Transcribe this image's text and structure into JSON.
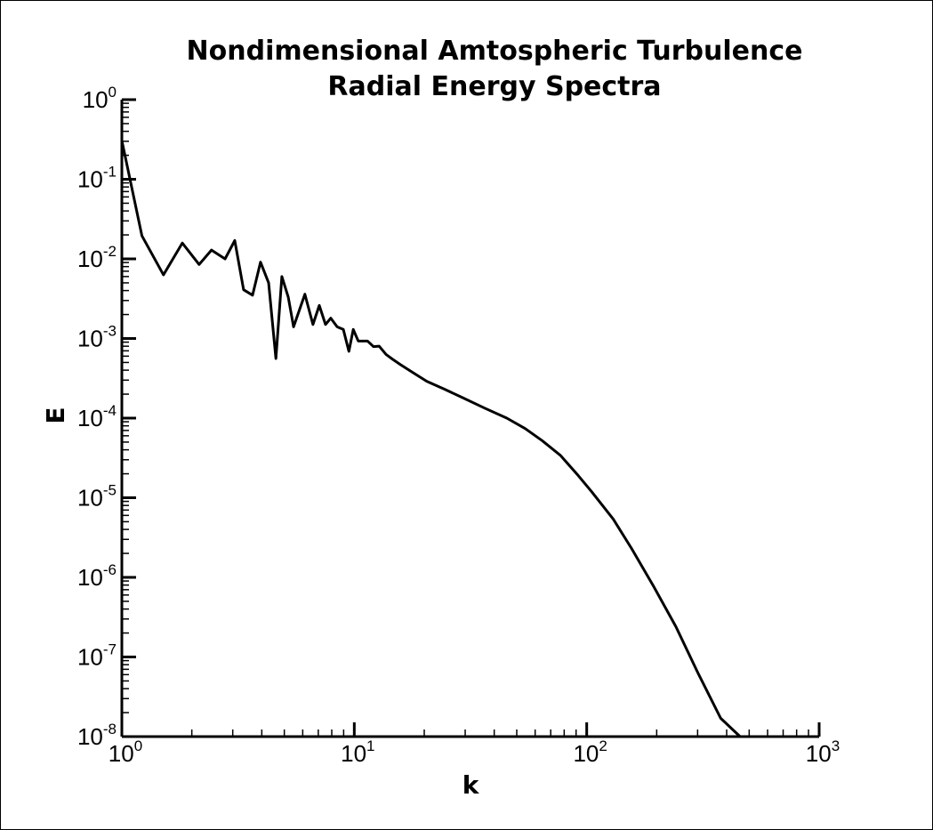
{
  "chart_data": {
    "type": "line",
    "title": [
      "Nondimensional Amtospheric Turbulence",
      "Radial Energy Spectra"
    ],
    "xlabel": "k",
    "ylabel": "E",
    "xscale": "log",
    "yscale": "log",
    "xlim": [
      1,
      1000
    ],
    "ylim": [
      1e-08,
      1
    ],
    "xticks": [
      {
        "value": 1,
        "label": "10",
        "sup": "0"
      },
      {
        "value": 10,
        "label": "10",
        "sup": "1"
      },
      {
        "value": 100,
        "label": "10",
        "sup": "2"
      },
      {
        "value": 1000,
        "label": "10",
        "sup": "3"
      }
    ],
    "yticks": [
      {
        "value": 1,
        "label": "10",
        "sup": "0"
      },
      {
        "value": 0.1,
        "label": "10",
        "sup": "-1"
      },
      {
        "value": 0.01,
        "label": "10",
        "sup": "-2"
      },
      {
        "value": 0.001,
        "label": "10",
        "sup": "-3"
      },
      {
        "value": 0.0001,
        "label": "10",
        "sup": "-4"
      },
      {
        "value": 1e-05,
        "label": "10",
        "sup": "-5"
      },
      {
        "value": 1e-06,
        "label": "10",
        "sup": "-6"
      },
      {
        "value": 1e-07,
        "label": "10",
        "sup": "-7"
      },
      {
        "value": 1e-08,
        "label": "10",
        "sup": "-8"
      }
    ],
    "color": "#000000",
    "x": [
      1,
      1.22,
      1.51,
      1.82,
      2.15,
      2.43,
      2.78,
      3.06,
      3.34,
      3.65,
      3.95,
      4.28,
      4.6,
      4.88,
      5.2,
      5.48,
      6.13,
      6.64,
      7.07,
      7.52,
      7.92,
      8.44,
      8.97,
      9.48,
      9.9,
      10.4,
      11.4,
      12.1,
      12.8,
      13.7,
      14.6,
      15.8,
      17.7,
      20.5,
      24.5,
      29.3,
      36.5,
      45.3,
      54.3,
      64.4,
      77.1,
      91.9,
      104.8,
      130,
      156,
      194,
      242,
      301,
      377,
      457
    ],
    "values": [
      0.306,
      0.0195,
      0.0063,
      0.0158,
      0.0085,
      0.0129,
      0.01,
      0.017,
      0.0041,
      0.0035,
      0.0091,
      0.005,
      0.00056,
      0.006,
      0.0033,
      0.0014,
      0.0036,
      0.0015,
      0.0026,
      0.0015,
      0.0018,
      0.0014,
      0.0013,
      0.00069,
      0.0013,
      0.00093,
      0.00093,
      0.00079,
      0.0008,
      0.00063,
      0.00055,
      0.00047,
      0.00038,
      0.00029,
      0.00023,
      0.00018,
      0.000133,
      0.0001,
      7.4e-05,
      5.2e-05,
      3.4e-05,
      1.9e-05,
      1.2e-05,
      5.4e-06,
      2.3e-06,
      7.7e-07,
      2.4e-07,
      6.3e-08,
      1.7e-08,
      1e-08
    ]
  }
}
